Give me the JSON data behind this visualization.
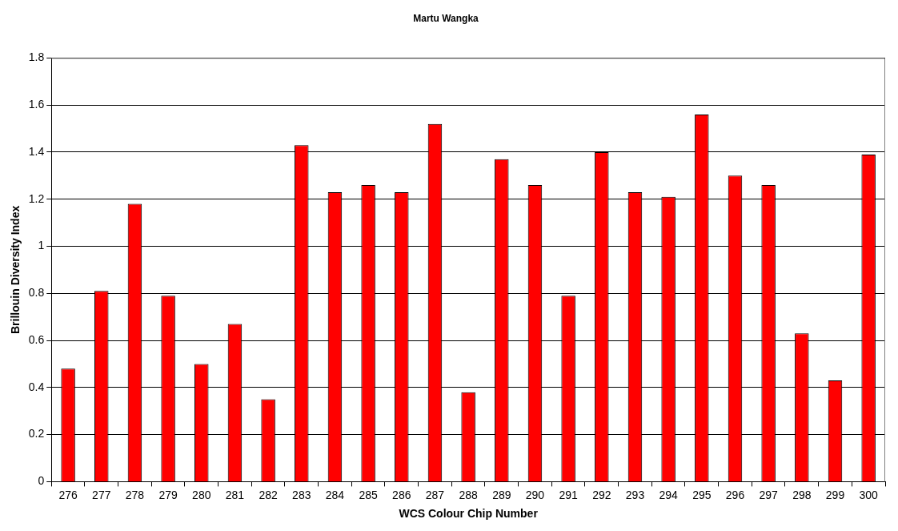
{
  "chart_data": {
    "type": "bar",
    "title": "Martu Wangka",
    "xlabel": "WCS Colour Chip Number",
    "ylabel": "Brillouin Diversity Index",
    "categories": [
      "276",
      "277",
      "278",
      "279",
      "280",
      "281",
      "282",
      "283",
      "284",
      "285",
      "286",
      "287",
      "288",
      "289",
      "290",
      "291",
      "292",
      "293",
      "294",
      "295",
      "296",
      "297",
      "298",
      "299",
      "300"
    ],
    "series": [
      {
        "color": "#ff0000",
        "values": [
          0.48,
          0.81,
          1.18,
          0.79,
          0.5,
          0.67,
          0.35,
          1.43,
          1.23,
          1.26,
          1.23,
          1.52,
          0.38,
          1.37,
          1.26,
          0.79,
          1.4,
          1.23,
          1.21,
          1.56,
          1.3,
          1.26,
          0.63,
          0.43,
          1.39
        ]
      }
    ],
    "ylim": [
      0,
      1.8
    ],
    "yticks": [
      0,
      0.2,
      0.4,
      0.6,
      0.8,
      1,
      1.2,
      1.4,
      1.6,
      1.8
    ],
    "grid": "y",
    "legend": false
  }
}
